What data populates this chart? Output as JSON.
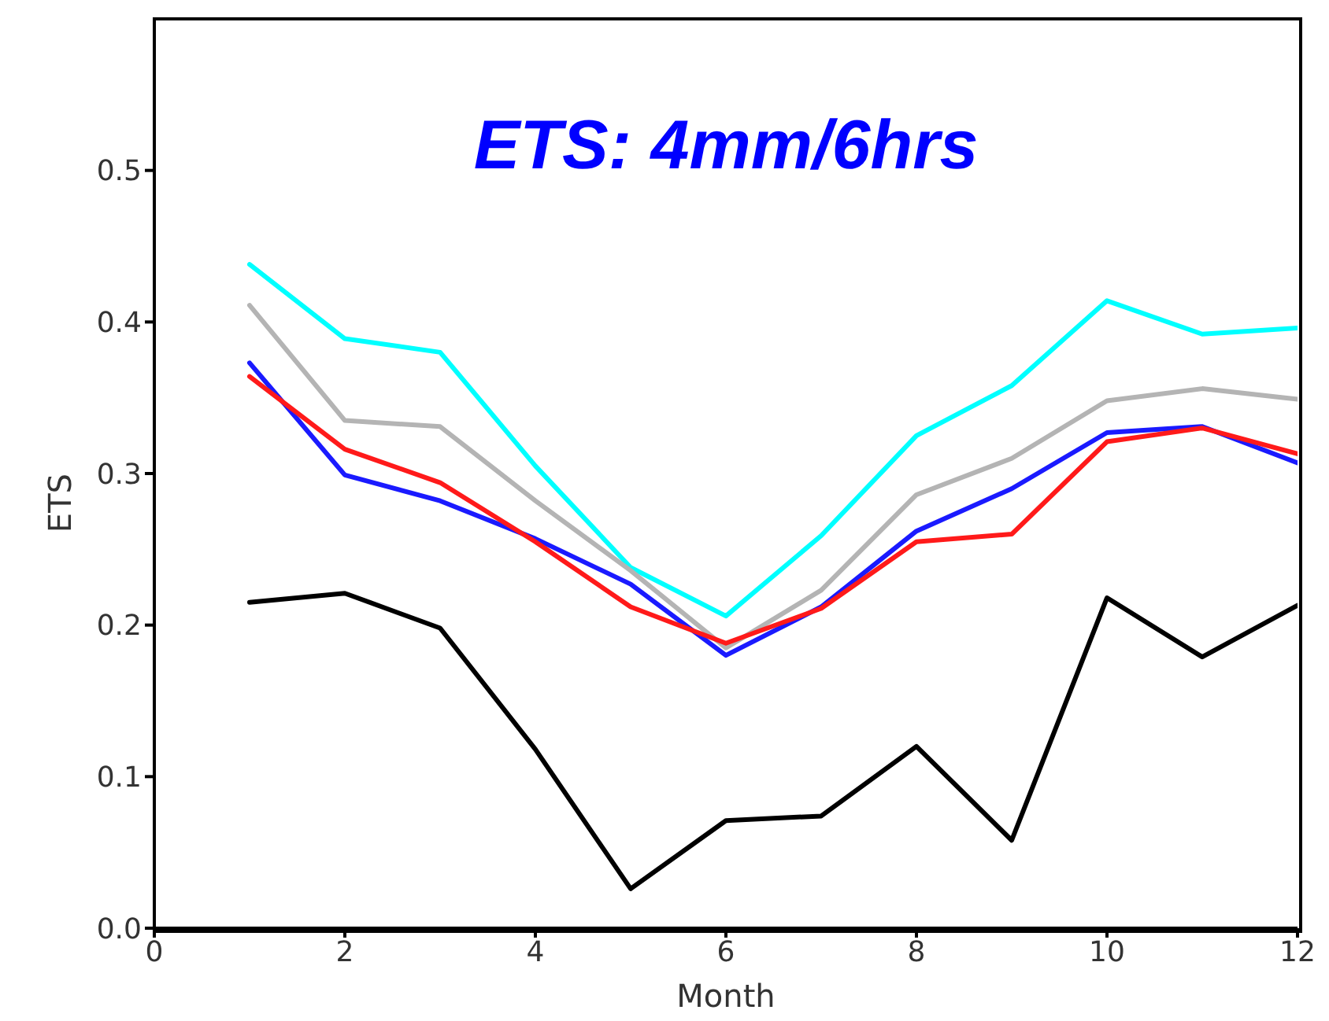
{
  "chart_data": {
    "type": "line",
    "title": "ETS: 4mm/6hrs",
    "xlabel": "Month",
    "ylabel": "ETS",
    "x": [
      1,
      2,
      3,
      4,
      5,
      6,
      7,
      8,
      9,
      10,
      11,
      12
    ],
    "series": [
      {
        "color": "#00ffff",
        "values": [
          0.438,
          0.389,
          0.38,
          0.305,
          0.238,
          0.206,
          0.259,
          0.325,
          0.358,
          0.414,
          0.392,
          0.396
        ]
      },
      {
        "color": "#b4b4b4",
        "values": [
          0.411,
          0.335,
          0.331,
          0.282,
          0.236,
          0.185,
          0.223,
          0.286,
          0.31,
          0.348,
          0.356,
          0.349
        ]
      },
      {
        "color": "#1a1aff",
        "values": [
          0.373,
          0.299,
          0.282,
          0.257,
          0.227,
          0.18,
          0.212,
          0.262,
          0.29,
          0.327,
          0.331,
          0.307
        ]
      },
      {
        "color": "#ff1a1a",
        "values": [
          0.364,
          0.316,
          0.294,
          0.255,
          0.212,
          0.188,
          0.211,
          0.255,
          0.26,
          0.321,
          0.33,
          0.313
        ]
      },
      {
        "color": "#000000",
        "values": [
          0.215,
          0.221,
          0.198,
          0.118,
          0.026,
          0.071,
          0.074,
          0.12,
          0.058,
          0.218,
          0.179,
          0.213
        ]
      }
    ],
    "xlim": [
      0,
      12
    ],
    "xticks": [
      0,
      2,
      4,
      6,
      8,
      10,
      12
    ],
    "ylim": [
      0,
      0.6
    ],
    "yticks": [
      {
        "value": 0,
        "label": "0.0"
      },
      0.1,
      0.2,
      0.3,
      0.4,
      0.5
    ],
    "grid": false,
    "marker": "none",
    "line_style": "solid"
  }
}
